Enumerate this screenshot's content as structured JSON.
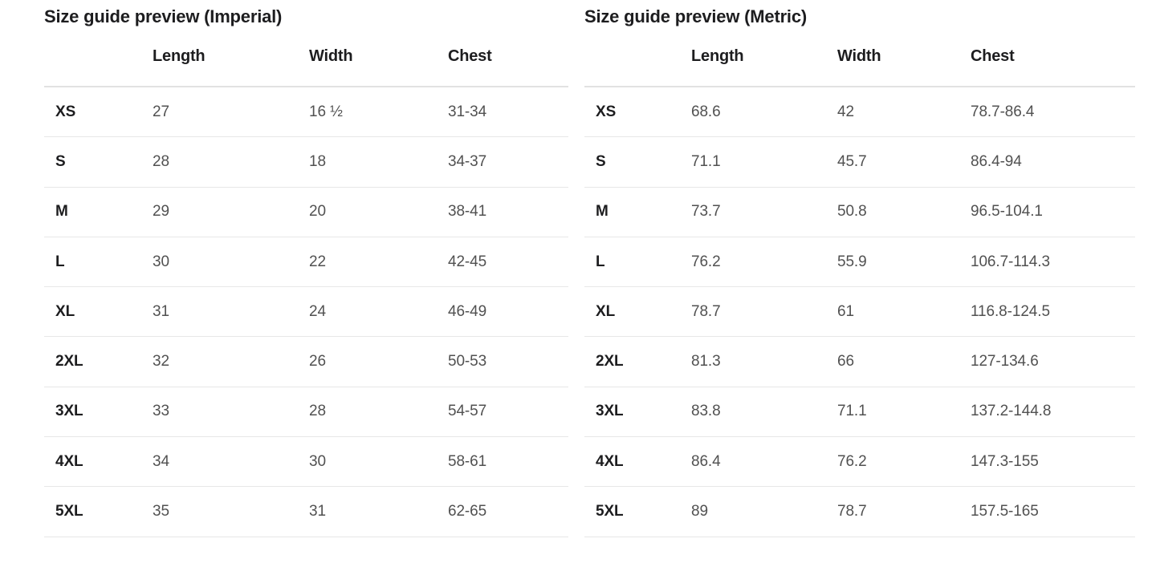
{
  "colors": {
    "heading_text": "#1d1d1f",
    "value_text": "#515151",
    "divider": "#e5e5e5"
  },
  "imperial": {
    "title": "Size guide preview (Imperial)",
    "columns": {
      "length": "Length",
      "width": "Width",
      "chest": "Chest"
    },
    "rows": [
      {
        "size": "XS",
        "length": "27",
        "width": "16 ½",
        "chest": "31-34"
      },
      {
        "size": "S",
        "length": "28",
        "width": "18",
        "chest": "34-37"
      },
      {
        "size": "M",
        "length": "29",
        "width": "20",
        "chest": "38-41"
      },
      {
        "size": "L",
        "length": "30",
        "width": "22",
        "chest": "42-45"
      },
      {
        "size": "XL",
        "length": "31",
        "width": "24",
        "chest": "46-49"
      },
      {
        "size": "2XL",
        "length": "32",
        "width": "26",
        "chest": "50-53"
      },
      {
        "size": "3XL",
        "length": "33",
        "width": "28",
        "chest": "54-57"
      },
      {
        "size": "4XL",
        "length": "34",
        "width": "30",
        "chest": "58-61"
      },
      {
        "size": "5XL",
        "length": "35",
        "width": "31",
        "chest": "62-65"
      }
    ]
  },
  "metric": {
    "title": "Size guide preview (Metric)",
    "columns": {
      "length": "Length",
      "width": "Width",
      "chest": "Chest"
    },
    "rows": [
      {
        "size": "XS",
        "length": "68.6",
        "width": "42",
        "chest": "78.7-86.4"
      },
      {
        "size": "S",
        "length": "71.1",
        "width": "45.7",
        "chest": "86.4-94"
      },
      {
        "size": "M",
        "length": "73.7",
        "width": "50.8",
        "chest": "96.5-104.1"
      },
      {
        "size": "L",
        "length": "76.2",
        "width": "55.9",
        "chest": "106.7-114.3"
      },
      {
        "size": "XL",
        "length": "78.7",
        "width": "61",
        "chest": "116.8-124.5"
      },
      {
        "size": "2XL",
        "length": "81.3",
        "width": "66",
        "chest": "127-134.6"
      },
      {
        "size": "3XL",
        "length": "83.8",
        "width": "71.1",
        "chest": "137.2-144.8"
      },
      {
        "size": "4XL",
        "length": "86.4",
        "width": "76.2",
        "chest": "147.3-155"
      },
      {
        "size": "5XL",
        "length": "89",
        "width": "78.7",
        "chest": "157.5-165"
      }
    ]
  }
}
